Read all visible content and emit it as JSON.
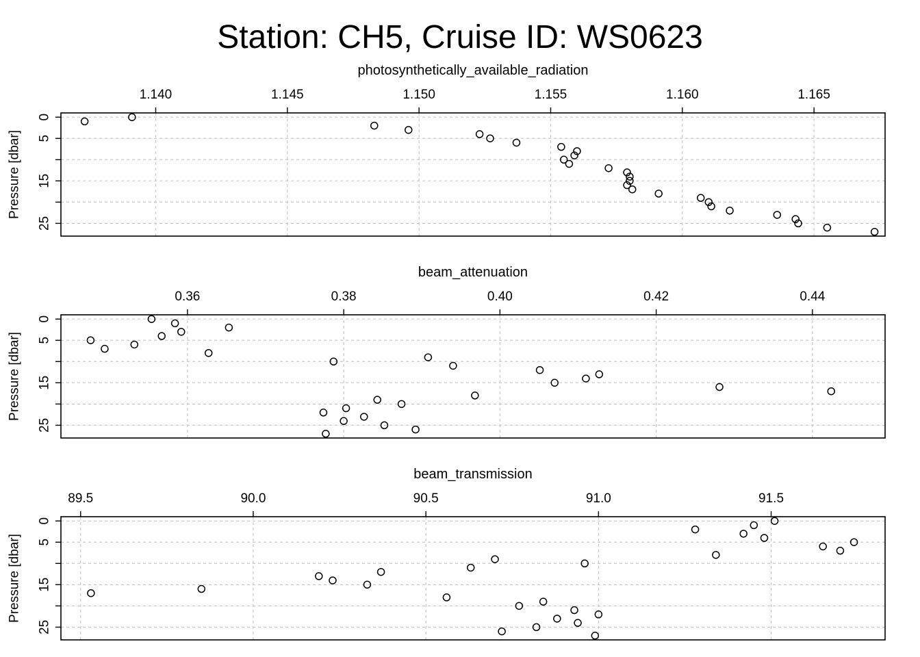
{
  "title": "Station: CH5, Cruise ID: WS0623",
  "chart_data": [
    {
      "type": "scatter",
      "title": "photosynthetically_available_radiation",
      "ylabel": "Pressure [dbar]",
      "xlim": [
        1.1364,
        1.1677
      ],
      "ylim": [
        28,
        -1
      ],
      "y_reversed": true,
      "x_ticks": [
        1.14,
        1.145,
        1.15,
        1.155,
        1.16,
        1.165
      ],
      "x_tick_labels": [
        "1.140",
        "1.145",
        "1.150",
        "1.155",
        "1.160",
        "1.165"
      ],
      "y_ticks": [
        0,
        5,
        10,
        15,
        20,
        25
      ],
      "y_tick_labels": [
        "0",
        "5",
        "",
        "15",
        "",
        "25"
      ],
      "grid": true,
      "points": [
        {
          "x": 1.1373,
          "y": 1
        },
        {
          "x": 1.1391,
          "y": 0
        },
        {
          "x": 1.1483,
          "y": 2
        },
        {
          "x": 1.1496,
          "y": 3
        },
        {
          "x": 1.1523,
          "y": 4
        },
        {
          "x": 1.1527,
          "y": 5
        },
        {
          "x": 1.1537,
          "y": 6
        },
        {
          "x": 1.1554,
          "y": 7
        },
        {
          "x": 1.156,
          "y": 8
        },
        {
          "x": 1.1559,
          "y": 9
        },
        {
          "x": 1.1555,
          "y": 10
        },
        {
          "x": 1.1557,
          "y": 11
        },
        {
          "x": 1.1572,
          "y": 12
        },
        {
          "x": 1.1579,
          "y": 13
        },
        {
          "x": 1.158,
          "y": 14
        },
        {
          "x": 1.158,
          "y": 15
        },
        {
          "x": 1.1579,
          "y": 16
        },
        {
          "x": 1.1581,
          "y": 17
        },
        {
          "x": 1.1591,
          "y": 18
        },
        {
          "x": 1.1607,
          "y": 19
        },
        {
          "x": 1.161,
          "y": 20
        },
        {
          "x": 1.1611,
          "y": 21
        },
        {
          "x": 1.1618,
          "y": 22
        },
        {
          "x": 1.1636,
          "y": 23
        },
        {
          "x": 1.1643,
          "y": 24
        },
        {
          "x": 1.1644,
          "y": 25
        },
        {
          "x": 1.1655,
          "y": 26
        },
        {
          "x": 1.1673,
          "y": 27
        }
      ]
    },
    {
      "type": "scatter",
      "title": "beam_attenuation",
      "ylabel": "Pressure [dbar]",
      "xlim": [
        0.3438,
        0.4493
      ],
      "ylim": [
        28,
        -1
      ],
      "y_reversed": true,
      "x_ticks": [
        0.36,
        0.38,
        0.4,
        0.42,
        0.44
      ],
      "x_tick_labels": [
        "0.36",
        "0.38",
        "0.40",
        "0.42",
        "0.44"
      ],
      "y_ticks": [
        0,
        5,
        10,
        15,
        20,
        25
      ],
      "y_tick_labels": [
        "0",
        "5",
        "",
        "15",
        "",
        "25"
      ],
      "grid": true,
      "points": [
        {
          "x": 0.3554,
          "y": 0
        },
        {
          "x": 0.3584,
          "y": 1
        },
        {
          "x": 0.3653,
          "y": 2
        },
        {
          "x": 0.3592,
          "y": 3
        },
        {
          "x": 0.3567,
          "y": 4
        },
        {
          "x": 0.3476,
          "y": 5
        },
        {
          "x": 0.3532,
          "y": 6
        },
        {
          "x": 0.3494,
          "y": 7
        },
        {
          "x": 0.3627,
          "y": 8
        },
        {
          "x": 0.3908,
          "y": 9
        },
        {
          "x": 0.3787,
          "y": 10
        },
        {
          "x": 0.394,
          "y": 11
        },
        {
          "x": 0.4051,
          "y": 12
        },
        {
          "x": 0.4127,
          "y": 13
        },
        {
          "x": 0.411,
          "y": 14
        },
        {
          "x": 0.407,
          "y": 15
        },
        {
          "x": 0.4281,
          "y": 16
        },
        {
          "x": 0.4424,
          "y": 17
        },
        {
          "x": 0.3968,
          "y": 18
        },
        {
          "x": 0.3843,
          "y": 19
        },
        {
          "x": 0.3874,
          "y": 20
        },
        {
          "x": 0.3803,
          "y": 21
        },
        {
          "x": 0.3774,
          "y": 22
        },
        {
          "x": 0.3826,
          "y": 23
        },
        {
          "x": 0.38,
          "y": 24
        },
        {
          "x": 0.3852,
          "y": 25
        },
        {
          "x": 0.3892,
          "y": 26
        },
        {
          "x": 0.3777,
          "y": 27
        }
      ]
    },
    {
      "type": "scatter",
      "title": "beam_transmission",
      "ylabel": "Pressure [dbar]",
      "xlim": [
        89.443,
        91.83
      ],
      "ylim": [
        28,
        -1
      ],
      "y_reversed": true,
      "x_ticks": [
        89.5,
        90.0,
        90.5,
        91.0,
        91.5
      ],
      "x_tick_labels": [
        "89.5",
        "90.0",
        "90.5",
        "91.0",
        "91.5"
      ],
      "y_ticks": [
        0,
        5,
        10,
        15,
        20,
        25
      ],
      "y_tick_labels": [
        "0",
        "5",
        "",
        "15",
        "",
        "25"
      ],
      "grid": true,
      "points": [
        {
          "x": 91.51,
          "y": 0
        },
        {
          "x": 91.45,
          "y": 1
        },
        {
          "x": 91.28,
          "y": 2
        },
        {
          "x": 91.42,
          "y": 3
        },
        {
          "x": 91.48,
          "y": 4
        },
        {
          "x": 91.74,
          "y": 5
        },
        {
          "x": 91.65,
          "y": 6
        },
        {
          "x": 91.7,
          "y": 7
        },
        {
          "x": 91.34,
          "y": 8
        },
        {
          "x": 90.7,
          "y": 9
        },
        {
          "x": 90.96,
          "y": 10
        },
        {
          "x": 90.63,
          "y": 11
        },
        {
          "x": 90.37,
          "y": 12
        },
        {
          "x": 90.19,
          "y": 13
        },
        {
          "x": 90.23,
          "y": 14
        },
        {
          "x": 90.33,
          "y": 15
        },
        {
          "x": 89.85,
          "y": 16
        },
        {
          "x": 89.53,
          "y": 17
        },
        {
          "x": 90.56,
          "y": 18
        },
        {
          "x": 90.84,
          "y": 19
        },
        {
          "x": 90.77,
          "y": 20
        },
        {
          "x": 90.93,
          "y": 21
        },
        {
          "x": 91.0,
          "y": 22
        },
        {
          "x": 90.88,
          "y": 23
        },
        {
          "x": 90.94,
          "y": 24
        },
        {
          "x": 90.82,
          "y": 25
        },
        {
          "x": 90.72,
          "y": 26
        },
        {
          "x": 90.99,
          "y": 27
        }
      ]
    }
  ]
}
